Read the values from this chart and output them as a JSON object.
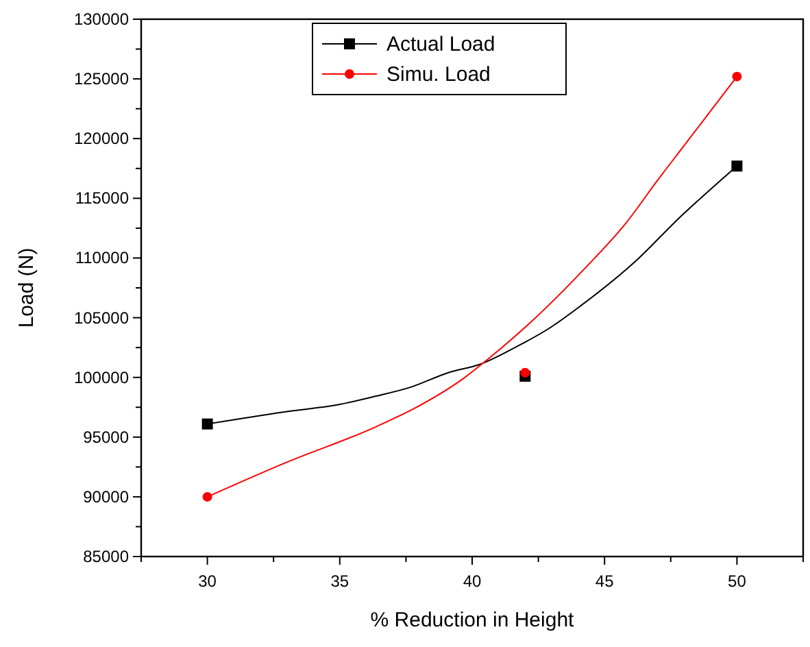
{
  "chart_data": {
    "type": "scatter",
    "xlabel": "% Reduction in Height",
    "ylabel": "Load (N)",
    "xlim": [
      27.5,
      52.5
    ],
    "xticks": [
      {
        "value": 27.5,
        "label": null
      },
      30,
      {
        "value": 32.5,
        "label": null
      },
      35,
      {
        "value": 37.5,
        "label": null
      },
      40,
      {
        "value": 42.5,
        "label": null
      },
      45,
      {
        "value": 47.5,
        "label": null
      },
      50,
      {
        "value": 52.5,
        "label": null
      }
    ],
    "ylim": [
      85000,
      130000
    ],
    "yticks": [
      85000,
      {
        "value": 87500,
        "label": null
      },
      90000,
      {
        "value": 92500,
        "label": null
      },
      95000,
      {
        "value": 97500,
        "label": null
      },
      100000,
      {
        "value": 102500,
        "label": null
      },
      105000,
      {
        "value": 107500,
        "label": null
      },
      110000,
      {
        "value": 112500,
        "label": null
      },
      115000,
      {
        "value": 117500,
        "label": null
      },
      120000,
      {
        "value": 122500,
        "label": null
      },
      125000,
      {
        "value": 127500,
        "label": null
      },
      130000
    ],
    "grid": false,
    "legend": "top",
    "series": [
      {
        "type": "line",
        "color": "#000000",
        "marker": "none",
        "x": [
          30,
          33.2,
          34.9,
          36.3,
          37.7,
          39.1,
          40.3,
          41.7,
          42.9,
          44.1,
          46.3,
          47.7,
          50
        ],
        "values": [
          96100,
          97200,
          97700,
          98400,
          99200,
          100400,
          101100,
          102600,
          104100,
          106000,
          110000,
          113100,
          117700
        ]
      },
      {
        "type": "line",
        "color": "#ff0000",
        "marker": "none",
        "x": [
          30,
          33,
          36.3,
          37.9,
          39.6,
          40.8,
          42.2,
          44.2,
          45.8,
          47,
          48,
          50
        ],
        "values": [
          90000,
          92900,
          95800,
          97500,
          99800,
          101900,
          104600,
          109000,
          112900,
          116500,
          119400,
          125200
        ]
      },
      {
        "name": "Actual Load",
        "color": "#000000",
        "marker": "square",
        "x": [
          30,
          42,
          50
        ],
        "values": [
          96100,
          100100,
          117700
        ]
      },
      {
        "name": "Simu. Load",
        "color": "#ff0000",
        "marker": "circle",
        "x": [
          30,
          42,
          50
        ],
        "values": [
          90000,
          100400,
          125200
        ]
      }
    ]
  }
}
